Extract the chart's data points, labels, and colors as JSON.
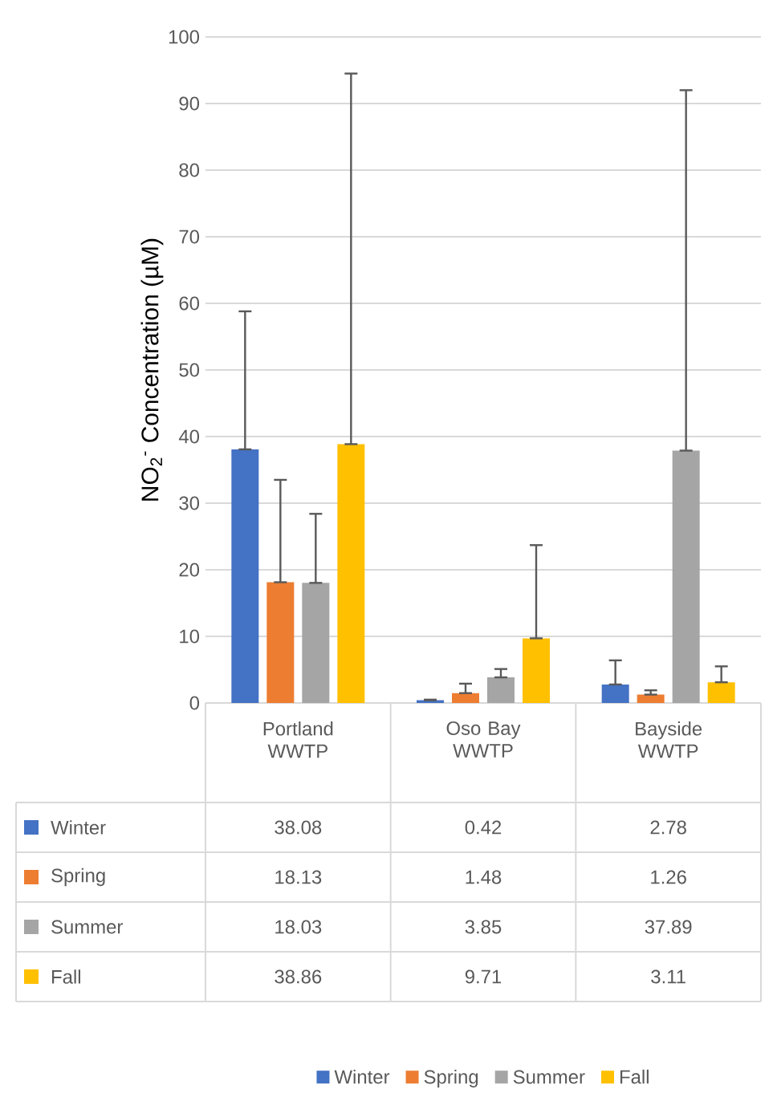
{
  "chart_data": {
    "type": "bar",
    "ylabel": "NO$_{2}$$^{-}$ Concentration (µM)",
    "categories": [
      "Portland WWTP",
      "Oso Bay WWTP",
      "Bayside WWTP"
    ],
    "series": [
      {
        "name": "Winter",
        "color": "#4472c4",
        "values": [
          38.08,
          0.42,
          2.78
        ],
        "errors": [
          [
            38.08,
            58.8
          ],
          [
            0.42,
            0.5
          ],
          [
            2.78,
            6.4
          ]
        ]
      },
      {
        "name": "Spring",
        "color": "#ed7d31",
        "values": [
          18.13,
          1.48,
          1.26
        ],
        "errors": [
          [
            18.13,
            33.5
          ],
          [
            1.48,
            2.9
          ],
          [
            1.26,
            1.9
          ]
        ]
      },
      {
        "name": "Summer",
        "color": "#a5a5a5",
        "values": [
          18.03,
          3.85,
          37.89
        ],
        "errors": [
          [
            18.03,
            28.4
          ],
          [
            3.85,
            5.1
          ],
          [
            37.89,
            92
          ]
        ]
      },
      {
        "name": "Fall",
        "color": "#ffc000",
        "values": [
          38.86,
          9.71,
          3.11
        ],
        "errors": [
          [
            38.86,
            94.5
          ],
          [
            9.71,
            23.7
          ],
          [
            3.11,
            5.5
          ]
        ]
      }
    ],
    "ylim": [
      0,
      100
    ],
    "yticks": [
      0,
      10,
      20,
      30,
      40,
      50,
      60,
      70,
      80,
      90,
      100
    ],
    "grid": "y",
    "legend": "bottom",
    "data_labels": true
  }
}
